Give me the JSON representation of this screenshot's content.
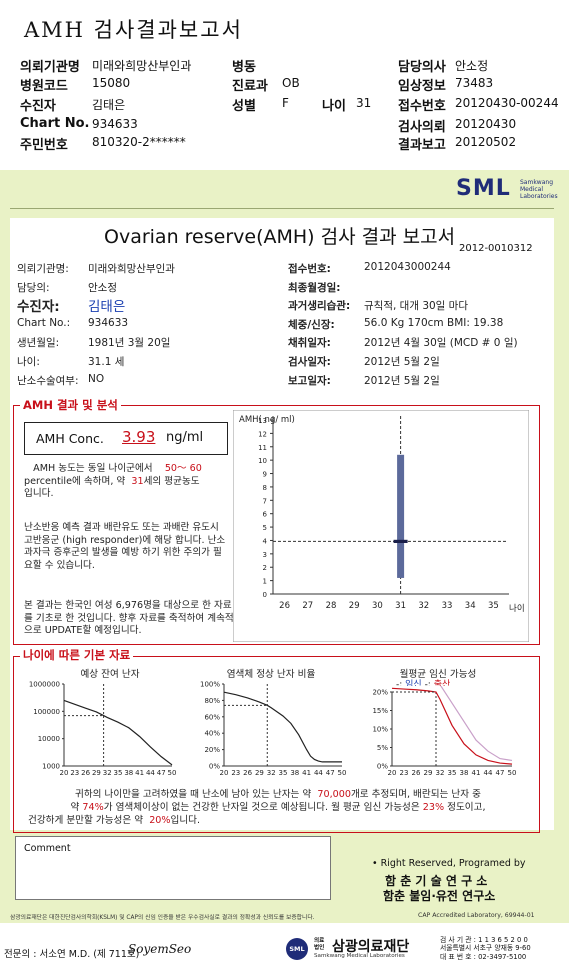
{
  "header": {
    "title": "AMH 검사결과보고서",
    "rows": [
      {
        "l1": "의뢰기관명",
        "v1": "미래와희망산부인과",
        "l2": "병동",
        "v2": "",
        "l3": "",
        "v3": "",
        "l4": "담당의사",
        "v4": "안소정"
      },
      {
        "l1": "병원코드",
        "v1": "15080",
        "l2": "진료과",
        "v2": "OB",
        "l3": "",
        "v3": "",
        "l4": "임상정보",
        "v4": "73483"
      },
      {
        "l1": "수진자",
        "v1": "김태은",
        "l2": "성별",
        "v2": "F",
        "l3": "나이",
        "v3": "31",
        "l4": "접수번호",
        "v4": "20120430-00244"
      },
      {
        "l1": "Chart No.",
        "v1": "934633",
        "l2": "",
        "v2": "",
        "l3": "",
        "v3": "",
        "l4": "검사의뢰",
        "v4": "20120430"
      },
      {
        "l1": "주민번호",
        "v1": "810320-2******",
        "l2": "",
        "v2": "",
        "l3": "",
        "v3": "",
        "l4": "결과보고",
        "v4": "20120502"
      }
    ]
  },
  "report": {
    "logo": "SML",
    "logo_sub1": "Samkwang",
    "logo_sub2": "Medical",
    "logo_sub3": "Laboratories",
    "title": "Ovarian reserve(AMH) 검사 결과 보고서",
    "doc_no": "2012-0010312",
    "left_info": [
      {
        "label": "의뢰기관명:",
        "value": "미래와희망산부인과"
      },
      {
        "label": "담당의:",
        "value": "안소정"
      },
      {
        "label": "수진자:",
        "value": "김태은"
      },
      {
        "label": "Chart No.:",
        "value": "934633"
      },
      {
        "label": "생년월일:",
        "value": "1981년 3월 20일"
      },
      {
        "label": "나이:",
        "value": "31.1 세"
      },
      {
        "label": "난소수술여부:",
        "value": "NO"
      }
    ],
    "right_info": [
      {
        "label": "접수번호:",
        "value": "2012043000244"
      },
      {
        "label": "최종월경일:",
        "value": ""
      },
      {
        "label": "과거생리습관:",
        "value": "규칙적, 대개  30일 마다"
      },
      {
        "label": "체중/신장:",
        "value": "56.0 Kg    170cm     BMI:  19.38"
      },
      {
        "label": "채취일자:",
        "value": "2012년 4월 30일   (MCD #  0 일)"
      },
      {
        "label": "검사일자:",
        "value": "2012년 5월 2일"
      },
      {
        "label": "보고일자:",
        "value": "2012년 5월 2일"
      }
    ],
    "amh_section": {
      "title": "AMH 결과 및 분석",
      "conc_label": "AMH Conc.",
      "conc_value": "3.93",
      "conc_unit": "ng/ml",
      "text1_a": "AMH 농도는 동일 나이군에서",
      "text1_pct": "50～ 60",
      "text1_b": "percentile에 속하며,  약",
      "text1_age": "31",
      "text1_c": "세의 평균농도",
      "text1_d": "입니다.",
      "text2": "난소반응 예측 결과 배란유도 또는 과배란 유도시 고반응군 (high responder)에 해당 합니다. 난소과자극 증후군의 발생을 예방 하기 위한 주의가 필요할 수 있습니다.",
      "text3": "본 결과는 한국인 여성 6,976명을 대상으로 한 자료를 기초로 한 것입니다. 향후 자료를 축적하여 계속적으로 UPDATE할 예정입니다."
    },
    "age_section": {
      "title": "나이에 따른 기본 자료",
      "chart1_title": "예상 잔여 난자",
      "chart2_title": "염색체 정상 난자 비율",
      "chart3_title": "월평균 임신 가능성",
      "chart3_legend_prefix": "-: ",
      "chart3_legend_a": "임신",
      "chart3_legend_sep": "  -: ",
      "chart3_legend_b": "출산",
      "summary_a": "귀하의 나이만을 고려하였을 때 난소에 남아 있는 난자는 약",
      "summary_eggs": "70,000",
      "summary_b": "개로 추정되며, 배란되는 난자 중",
      "summary_c": "약",
      "summary_pct1": "74%",
      "summary_d": "가 염색체이상이 없는 건강한 난자일 것으로 예상됩니다. 월 평균 임신 가능성은",
      "summary_pct2": "23%",
      "summary_e": "정도이고,",
      "summary_f": "건강하게 분만할 가능성은 약",
      "summary_pct3": "20%",
      "summary_g": "입니다."
    },
    "comment_label": "Comment",
    "rights1": "• Right Reserved, Programed by",
    "rights2": "함 춘 기 술 연 구 소",
    "rights3": "함춘 불임·유전 연구소",
    "footer_note": "삼광의료재단은 대한진단검사의학회(KSLM) 및 CAP의 신임 인증을 받은 우수검사실로 결과의 정확성과 신뢰도를 보증합니다.",
    "cap": "CAP Accredited Laboratory, 69944-01",
    "signer": "전문의 : 서소연 M.D. (제 711호)",
    "signature": "SoyemSeo",
    "org_small1": "의료",
    "org_small2": "법인",
    "org_name": "삼광의료재단",
    "org_en": "Samkwang Medical Laboratories",
    "addr1": "검 사 기 관 : 1 1 3 6 5 2 0 0",
    "addr2": "서울특별시 서초구 양재동 9-60",
    "addr3": "대 표 번 호 : 02-3497-5100"
  },
  "chart_data": [
    {
      "type": "scatter",
      "ylabel": "AMH( ng/ ml)",
      "xlabel": "나이",
      "x_ticks": [
        26,
        27,
        28,
        29,
        30,
        31,
        32,
        33,
        34,
        35
      ],
      "y_ticks": [
        0,
        1,
        2,
        3,
        4,
        5,
        6,
        7,
        8,
        9,
        10,
        11,
        12,
        13
      ],
      "xlim": [
        25.5,
        35.5
      ],
      "ylim": [
        0,
        13
      ],
      "point": {
        "x": 31,
        "y": 3.93
      },
      "range": {
        "x": 31,
        "low": 1.2,
        "high": 10.4
      },
      "reference_line_y": 3.93
    },
    {
      "type": "line",
      "title": "예상 잔여 난자",
      "x_ticks": [
        20,
        23,
        26,
        29,
        32,
        35,
        38,
        41,
        44,
        47,
        50
      ],
      "y_ticks": [
        1000,
        10000,
        100000,
        1000000
      ],
      "y_tick_labels": [
        "1000",
        "10000",
        "100000",
        "1000000"
      ],
      "log_y": true,
      "x": [
        20,
        23,
        26,
        29,
        31,
        32,
        35,
        38,
        41,
        44,
        47,
        50
      ],
      "y": [
        250000,
        180000,
        130000,
        95000,
        70000,
        60000,
        40000,
        25000,
        12000,
        5000,
        2200,
        1100
      ],
      "marker_x": 31
    },
    {
      "type": "line",
      "title": "염색체 정상 난자 비율",
      "x_ticks": [
        20,
        23,
        26,
        29,
        32,
        35,
        38,
        41,
        44,
        47,
        50
      ],
      "y_ticks": [
        0,
        20,
        40,
        60,
        80,
        100
      ],
      "y_tick_labels": [
        "0%",
        "20%",
        "40%",
        "60%",
        "80%",
        "100%"
      ],
      "x": [
        20,
        23,
        26,
        29,
        31,
        32,
        35,
        37,
        39,
        41,
        42,
        43,
        44,
        45,
        47,
        50
      ],
      "y": [
        90,
        87,
        83,
        78,
        74,
        71,
        61,
        52,
        38,
        20,
        12,
        8,
        6,
        5,
        5,
        5
      ],
      "marker_x": 31
    },
    {
      "type": "line",
      "title": "월평균 임신 가능성",
      "x_ticks": [
        20,
        23,
        26,
        29,
        32,
        35,
        38,
        41,
        44,
        47,
        50
      ],
      "y_ticks": [
        0,
        5,
        10,
        15,
        20
      ],
      "y_tick_labels": [
        "0%",
        "5%",
        "10%",
        "15%",
        "20%"
      ],
      "series": [
        {
          "name": "임신",
          "x": [
            20,
            23,
            26,
            29,
            31,
            32,
            35,
            38,
            41,
            44,
            47,
            50
          ],
          "y": [
            25,
            24.5,
            24,
            23.5,
            23,
            22,
            17,
            12,
            7,
            4,
            2,
            1.5
          ]
        },
        {
          "name": "출산",
          "x": [
            20,
            23,
            26,
            29,
            31,
            32,
            35,
            38,
            41,
            44,
            47,
            50
          ],
          "y": [
            21,
            20.8,
            20.6,
            20.3,
            20,
            18,
            11,
            6,
            3,
            1.5,
            0.8,
            0.5
          ]
        }
      ],
      "marker_x": 31
    }
  ],
  "colors": {
    "green_bg": "#e9f2c6",
    "red": "#c8101a",
    "blue": "#1a3fb0",
    "bar": "#5c6a9b"
  }
}
